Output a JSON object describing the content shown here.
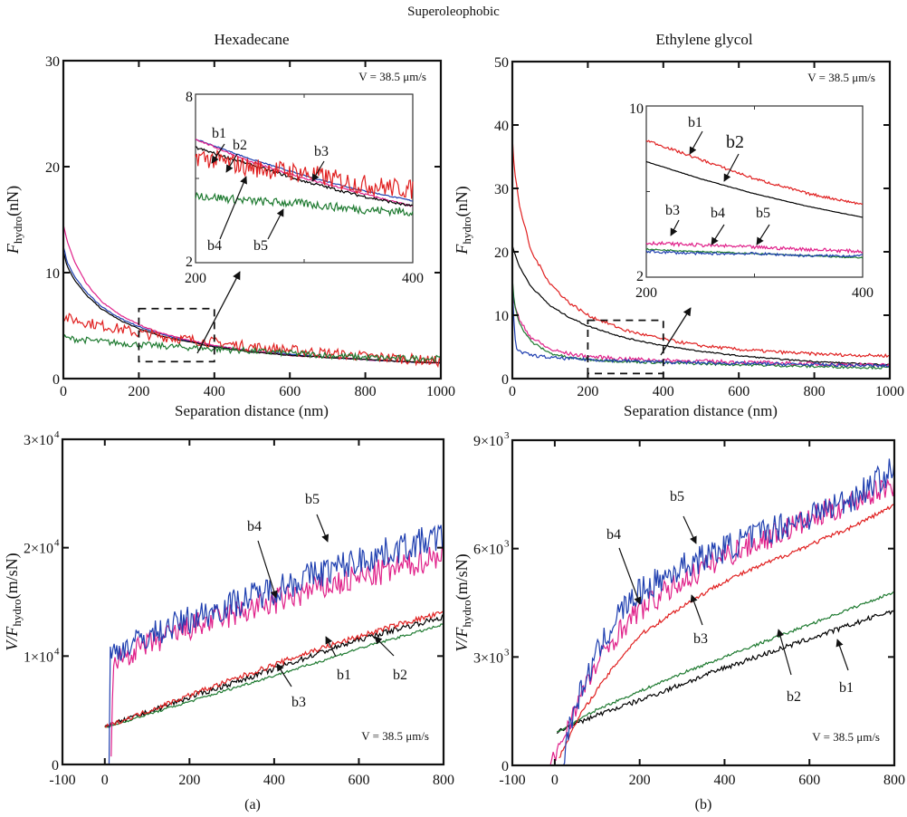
{
  "figure": {
    "super_title": "Superoleophobic",
    "panel_labels": [
      "(a)",
      "(b)"
    ]
  },
  "chart_data": [
    {
      "id": "hexadecane-force",
      "type": "line",
      "title": "Hexadecane",
      "xlabel": "Separation distance (nm)",
      "ylabel_main": "F",
      "ylabel_sub": "hydro",
      "ylabel_unit": "(nN)",
      "xlim": [
        0,
        1000
      ],
      "ylim": [
        0,
        30
      ],
      "xticks": [
        "0",
        "200",
        "400",
        "600",
        "800",
        "1000"
      ],
      "yticks": [
        "0",
        "10",
        "20",
        "30"
      ],
      "annotation": "V = 38.5  μm/s",
      "series": [
        {
          "name": "b1",
          "color": "#1f3fb0",
          "x": [
            0,
            10,
            30,
            60,
            100,
            150,
            200,
            250,
            300,
            400,
            500,
            600,
            700,
            800,
            900,
            1000
          ],
          "y": [
            12.5,
            11,
            9.6,
            8.2,
            6.8,
            5.7,
            4.9,
            4.3,
            3.8,
            3.1,
            2.6,
            2.3,
            2.0,
            1.8,
            1.6,
            1.5
          ]
        },
        {
          "name": "b2",
          "color": "#e0218a",
          "x": [
            0,
            10,
            30,
            60,
            100,
            150,
            200,
            250,
            300,
            400,
            500,
            600,
            700,
            800,
            900,
            1000
          ],
          "y": [
            14.5,
            13,
            11,
            9,
            7.3,
            6.0,
            5.1,
            4.4,
            3.9,
            3.1,
            2.6,
            2.2,
            2.0,
            1.8,
            1.6,
            1.5
          ]
        },
        {
          "name": "b3",
          "color": "#000000",
          "x": [
            0,
            10,
            30,
            60,
            100,
            150,
            200,
            250,
            300,
            400,
            500,
            600,
            700,
            800,
            900,
            1000
          ],
          "y": [
            12,
            10.6,
            9.3,
            7.9,
            6.6,
            5.5,
            4.7,
            4.1,
            3.7,
            3.0,
            2.5,
            2.2,
            2.0,
            1.8,
            1.6,
            1.5
          ]
        },
        {
          "name": "b4",
          "color": "#e02020",
          "x": [
            0,
            10,
            100,
            150,
            200,
            300,
            400,
            500,
            600,
            700,
            800,
            900,
            1000
          ],
          "y": [
            5.8,
            5.7,
            5.0,
            4.7,
            4.3,
            3.8,
            3.4,
            3.0,
            2.7,
            2.4,
            2.1,
            1.9,
            1.6
          ]
        },
        {
          "name": "b5",
          "color": "#1e7a30",
          "x": [
            0,
            10,
            100,
            200,
            300,
            400,
            500,
            600,
            700,
            800,
            900,
            1000
          ],
          "y": [
            3.9,
            3.8,
            3.5,
            3.2,
            3.0,
            2.8,
            2.6,
            2.4,
            2.2,
            2.0,
            1.9,
            1.9
          ]
        }
      ],
      "inset": {
        "xlim": [
          200,
          400
        ],
        "ylim": [
          2,
          8
        ],
        "xticks": [
          "200",
          "400"
        ],
        "yticks": [
          "2",
          "8"
        ],
        "labels": [
          "b1",
          "b2",
          "b3",
          "b4",
          "b5"
        ],
        "series": [
          {
            "name": "b1",
            "color": "#1f3fb0",
            "x": [
              200,
              250,
              300,
              350,
              400
            ],
            "y": [
              6.4,
              5.7,
              5.1,
              4.6,
              4.2
            ]
          },
          {
            "name": "b2",
            "color": "#e0218a",
            "x": [
              200,
              250,
              300,
              350,
              400
            ],
            "y": [
              6.4,
              5.6,
              5.0,
              4.5,
              4.0
            ]
          },
          {
            "name": "b3",
            "color": "#000000",
            "x": [
              200,
              250,
              300,
              350,
              400
            ],
            "y": [
              6.1,
              5.5,
              4.9,
              4.4,
              4.0
            ]
          },
          {
            "name": "b4",
            "color": "#e02020",
            "x": [
              200,
              250,
              300,
              350,
              400
            ],
            "y": [
              5.8,
              5.4,
              5.2,
              4.8,
              4.6
            ]
          },
          {
            "name": "b5",
            "color": "#1e7a30",
            "x": [
              200,
              250,
              300,
              350,
              400
            ],
            "y": [
              4.4,
              4.2,
              4.1,
              3.9,
              3.8
            ]
          }
        ]
      }
    },
    {
      "id": "ethylene-glycol-force",
      "type": "line",
      "title": "Ethylene glycol",
      "xlabel": "Separation distance (nm)",
      "ylabel_main": "F",
      "ylabel_sub": "hydro",
      "ylabel_unit": "(nN)",
      "xlim": [
        0,
        1000
      ],
      "ylim": [
        0,
        50
      ],
      "xticks": [
        "0",
        "200",
        "400",
        "600",
        "800",
        "1000"
      ],
      "yticks": [
        "0",
        "10",
        "20",
        "30",
        "40",
        "50"
      ],
      "annotation": "V = 38.5  μm/s",
      "series": [
        {
          "name": "b1",
          "color": "#e02020",
          "x": [
            0,
            5,
            20,
            50,
            100,
            150,
            200,
            300,
            400,
            500,
            600,
            700,
            800,
            900,
            1000
          ],
          "y": [
            38,
            33,
            27,
            20,
            15,
            12,
            10,
            7.6,
            6.2,
            5.2,
            4.6,
            4.2,
            3.9,
            3.7,
            3.6
          ]
        },
        {
          "name": "b2",
          "color": "#000000",
          "x": [
            0,
            5,
            20,
            50,
            100,
            150,
            200,
            300,
            400,
            500,
            600,
            700,
            800,
            900,
            1000
          ],
          "y": [
            21,
            20,
            17.5,
            14.5,
            11.5,
            9.7,
            8.3,
            6.4,
            5.2,
            4.3,
            3.6,
            3.1,
            2.7,
            2.4,
            2.2
          ]
        },
        {
          "name": "b3",
          "color": "#e0218a",
          "x": [
            0,
            5,
            20,
            50,
            100,
            150,
            200,
            300,
            400,
            600,
            800,
            1000
          ],
          "y": [
            14,
            12,
            9,
            6.5,
            4.6,
            3.9,
            3.5,
            3.1,
            2.9,
            2.6,
            2.3,
            2.1
          ]
        },
        {
          "name": "b4",
          "color": "#1e7a30",
          "x": [
            0,
            5,
            20,
            50,
            100,
            150,
            200,
            300,
            400,
            600,
            800,
            1000
          ],
          "y": [
            16,
            12,
            8.5,
            5.8,
            4.0,
            3.3,
            3.0,
            2.7,
            2.5,
            2.2,
            1.9,
            1.7
          ]
        },
        {
          "name": "b5",
          "color": "#1f3fb0",
          "x": [
            0,
            5,
            10,
            20,
            50,
            100,
            200,
            400,
            600,
            800,
            1000
          ],
          "y": [
            15,
            8,
            5,
            4.2,
            3.7,
            3.3,
            3.0,
            2.6,
            2.4,
            2.2,
            2.0
          ]
        }
      ],
      "inset": {
        "xlim": [
          200,
          400
        ],
        "ylim": [
          2,
          10
        ],
        "xticks": [
          "200",
          "400"
        ],
        "yticks": [
          "2",
          "10"
        ],
        "labels": [
          "b1",
          "b2",
          "b3",
          "b4",
          "b5"
        ],
        "series": [
          {
            "name": "b1",
            "color": "#e02020",
            "x": [
              200,
              250,
              300,
              350,
              400
            ],
            "y": [
              8.4,
              7.5,
              6.6,
              5.9,
              5.4
            ]
          },
          {
            "name": "b2",
            "color": "#000000",
            "x": [
              200,
              250,
              300,
              350,
              400
            ],
            "y": [
              7.4,
              6.6,
              5.9,
              5.3,
              4.8
            ]
          },
          {
            "name": "b3",
            "color": "#e0218a",
            "x": [
              200,
              250,
              300,
              350,
              400
            ],
            "y": [
              3.6,
              3.5,
              3.4,
              3.3,
              3.2
            ]
          },
          {
            "name": "b4",
            "color": "#1e7a30",
            "x": [
              200,
              250,
              300,
              350,
              400
            ],
            "y": [
              3.3,
              3.2,
              3.1,
              3.0,
              2.9
            ]
          },
          {
            "name": "b5",
            "color": "#1f3fb0",
            "x": [
              200,
              250,
              300,
              350,
              400
            ],
            "y": [
              3.2,
              3.1,
              3.1,
              3.0,
              3.0
            ]
          }
        ]
      }
    },
    {
      "id": "hexadecane-inverse",
      "type": "line",
      "title": "",
      "xlabel": "",
      "ylabel_main": "V/F",
      "ylabel_sub": "hydro",
      "ylabel_unit": "(m/sN)",
      "xlim": [
        -100,
        800
      ],
      "ylim": [
        0,
        30000
      ],
      "xticks": [
        "-100",
        "0",
        "200",
        "400",
        "600",
        "800"
      ],
      "yticks": [
        "0",
        "1×10",
        "2×10",
        "3×10"
      ],
      "ytick_exp": [
        "",
        "4",
        "4",
        "4"
      ],
      "annotation": "V = 38.5  μm/s",
      "labels": [
        "b1",
        "b2",
        "b3",
        "b4",
        "b5"
      ],
      "series": [
        {
          "name": "b1",
          "color": "#000000",
          "x": [
            0,
            10,
            100,
            200,
            300,
            400,
            500,
            600,
            700,
            800
          ],
          "y": [
            3500,
            3600,
            4800,
            6200,
            7500,
            8800,
            10200,
            11500,
            12600,
            13600
          ]
        },
        {
          "name": "b2",
          "color": "#1e7a30",
          "x": [
            0,
            10,
            100,
            200,
            300,
            400,
            500,
            600,
            700,
            800
          ],
          "y": [
            3400,
            3500,
            4600,
            5800,
            7000,
            8200,
            9400,
            10700,
            11800,
            12900
          ]
        },
        {
          "name": "b3",
          "color": "#e02020",
          "x": [
            0,
            10,
            100,
            200,
            300,
            400,
            500,
            600,
            700,
            800
          ],
          "y": [
            3500,
            3600,
            4900,
            6400,
            7800,
            9200,
            10600,
            11800,
            13000,
            14000
          ]
        },
        {
          "name": "b4",
          "color": "#e0218a",
          "x": [
            15,
            20,
            100,
            200,
            300,
            400,
            500,
            600,
            700,
            800
          ],
          "y": [
            0,
            9500,
            11000,
            12600,
            13800,
            15000,
            16200,
            17200,
            18200,
            19500
          ]
        },
        {
          "name": "b5",
          "color": "#1f3fb0",
          "x": [
            10,
            12,
            100,
            200,
            300,
            400,
            500,
            600,
            700,
            800
          ],
          "y": [
            0,
            10200,
            11800,
            13400,
            14800,
            16200,
            17600,
            18800,
            20000,
            21000
          ]
        }
      ]
    },
    {
      "id": "ethylene-glycol-inverse",
      "type": "line",
      "title": "",
      "xlabel": "",
      "ylabel_main": "V/F",
      "ylabel_sub": "hydro",
      "ylabel_unit": "(m/sN)",
      "xlim": [
        -100,
        800
      ],
      "ylim": [
        0,
        9000
      ],
      "xticks": [
        "-100",
        "0",
        "200",
        "400",
        "600",
        "800"
      ],
      "yticks": [
        "0",
        "3×10",
        "6×10",
        "9×10"
      ],
      "ytick_exp": [
        "",
        "3",
        "3",
        "3"
      ],
      "annotation": "V = 38.5  μm/s",
      "labels": [
        "b1",
        "b2",
        "b3",
        "b4",
        "b5"
      ],
      "series": [
        {
          "name": "b1",
          "color": "#000000",
          "x": [
            5,
            10,
            100,
            200,
            300,
            400,
            500,
            600,
            700,
            800
          ],
          "y": [
            900,
            950,
            1400,
            1800,
            2250,
            2700,
            3100,
            3500,
            3900,
            4300
          ]
        },
        {
          "name": "b2",
          "color": "#1e7a30",
          "x": [
            5,
            10,
            100,
            200,
            300,
            400,
            500,
            600,
            700,
            800
          ],
          "y": [
            900,
            950,
            1550,
            2050,
            2550,
            3000,
            3450,
            3900,
            4350,
            4800
          ]
        },
        {
          "name": "b3",
          "color": "#e02020",
          "x": [
            10,
            30,
            60,
            100,
            150,
            200,
            300,
            400,
            500,
            600,
            700,
            800
          ],
          "y": [
            200,
            700,
            1400,
            2100,
            2900,
            3600,
            4400,
            5100,
            5600,
            6100,
            6600,
            7200
          ]
        },
        {
          "name": "b4",
          "color": "#e0218a",
          "x": [
            -10,
            10,
            30,
            60,
            100,
            150,
            200,
            300,
            400,
            500,
            600,
            700,
            800
          ],
          "y": [
            0,
            500,
            1100,
            1900,
            2800,
            3700,
            4300,
            5100,
            5800,
            6300,
            6800,
            7300,
            7800
          ]
        },
        {
          "name": "b5",
          "color": "#1f3fb0",
          "x": [
            20,
            30,
            60,
            100,
            150,
            200,
            300,
            400,
            500,
            600,
            700,
            800
          ],
          "y": [
            0,
            900,
            2000,
            3100,
            4200,
            4800,
            5500,
            6000,
            6500,
            6900,
            7400,
            8200
          ]
        }
      ]
    }
  ]
}
